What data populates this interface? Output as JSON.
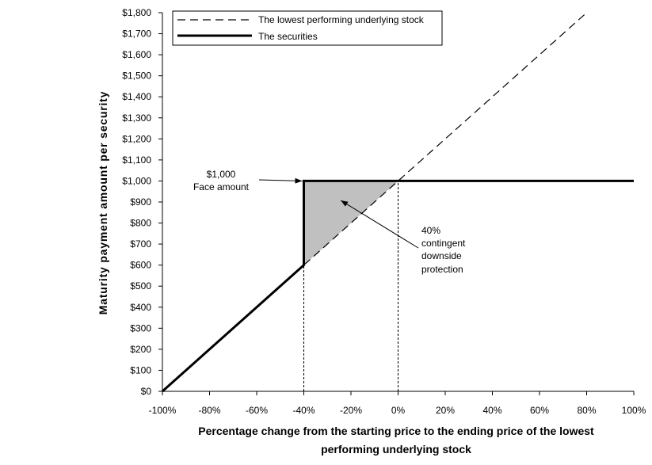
{
  "chart_data": {
    "type": "line",
    "title": "",
    "xlabel": [
      "Percentage change from the starting price to the ending price of the lowest",
      "performing underlying stock"
    ],
    "ylabel": "Maturity payment amount per security",
    "xlim": [
      -100,
      100
    ],
    "ylim": [
      0,
      1800
    ],
    "x_ticks": [
      -100,
      -80,
      -60,
      -40,
      -20,
      0,
      20,
      40,
      60,
      80,
      100
    ],
    "x_tick_labels": [
      "-100%",
      "-80%",
      "-60%",
      "-40%",
      "-20%",
      "0%",
      "20%",
      "40%",
      "60%",
      "80%",
      "100%"
    ],
    "y_ticks": [
      0,
      100,
      200,
      300,
      400,
      500,
      600,
      700,
      800,
      900,
      1000,
      1100,
      1200,
      1300,
      1400,
      1500,
      1600,
      1700,
      1800
    ],
    "y_tick_labels": [
      "$0",
      "$100",
      "$200",
      "$300",
      "$400",
      "$500",
      "$600",
      "$700",
      "$800",
      "$900",
      "$1,000",
      "$1,100",
      "$1,200",
      "$1,300",
      "$1,400",
      "$1,500",
      "$1,600",
      "$1,700",
      "$1,800"
    ],
    "legend_placement": "top-left",
    "series": [
      {
        "name": "The lowest performing underlying stock",
        "style": "dashed",
        "color": "#000000",
        "points": [
          [
            -100,
            0
          ],
          [
            80,
            1800
          ]
        ]
      },
      {
        "name": "The securities",
        "style": "solid-thick",
        "color": "#000000",
        "points": [
          [
            -100,
            0
          ],
          [
            -40,
            600
          ],
          [
            -40,
            1000
          ],
          [
            100,
            1000
          ]
        ]
      }
    ],
    "shaded_region": {
      "color": "#c0c0c0",
      "points": [
        [
          -40,
          600
        ],
        [
          -40,
          1000
        ],
        [
          0,
          1000
        ]
      ]
    },
    "reference_lines": [
      {
        "x": -40,
        "y_from": 0,
        "y_to": 600
      },
      {
        "x": 0,
        "y_from": 0,
        "y_to": 1000
      }
    ],
    "annotations": [
      {
        "lines": [
          "$1,000",
          "Face amount"
        ],
        "arrow_to": [
          -40,
          1000
        ]
      },
      {
        "lines": [
          "40%",
          "contingent",
          "downside",
          "protection"
        ],
        "arrow_to": [
          -25,
          900
        ]
      }
    ]
  }
}
